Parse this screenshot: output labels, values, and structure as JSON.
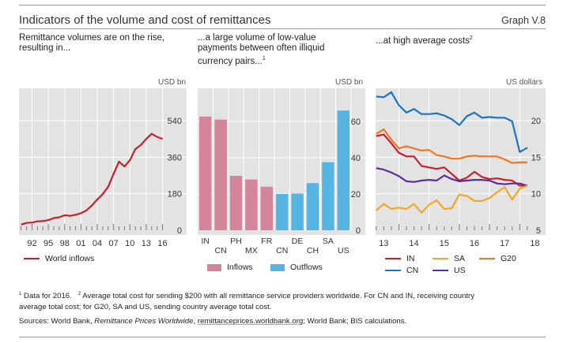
{
  "header": {
    "title": "Indicators of the volume and cost of remittances",
    "graph_number": "Graph V.8"
  },
  "panels": [
    {
      "subtitle_lines": [
        "Remittance volumes are on the rise,",
        "resulting in..."
      ],
      "footnote_mark": "",
      "unit": "USD bn"
    },
    {
      "subtitle_lines": [
        "...a large volume of low-value",
        "payments between often illiquid",
        "currency pairs..."
      ],
      "footnote_mark": "1",
      "unit": "USD bn"
    },
    {
      "subtitle_lines": [
        "...at high average costs"
      ],
      "footnote_mark": "2",
      "unit": "US dollars"
    }
  ],
  "chart_data": [
    {
      "type": "line",
      "title": "Remittance volumes are on the rise, resulting in...",
      "ylabel": "USD bn",
      "ylim": [
        0,
        600
      ],
      "yticks": [
        0,
        180,
        360,
        540
      ],
      "xtick_labels": [
        "92",
        "95",
        "98",
        "01",
        "04",
        "07",
        "10",
        "13",
        "16"
      ],
      "x": [
        1990,
        1991,
        1992,
        1993,
        1994,
        1995,
        1996,
        1997,
        1998,
        1999,
        2000,
        2001,
        2002,
        2003,
        2004,
        2005,
        2006,
        2007,
        2008,
        2009,
        2010,
        2011,
        2012,
        2013,
        2014,
        2015,
        2016
      ],
      "series": [
        {
          "name": "World inflows",
          "color": "#c8202f",
          "values": [
            28,
            36,
            38,
            44,
            45,
            50,
            60,
            64,
            74,
            71,
            76,
            84,
            98,
            122,
            152,
            178,
            215,
            278,
            338,
            314,
            345,
            400,
            420,
            450,
            475,
            460,
            450
          ]
        }
      ],
      "legend": [
        "World inflows"
      ],
      "grid": true
    },
    {
      "type": "bar",
      "title": "...a large volume of low-value payments between often illiquid currency pairs...",
      "ylabel": "USD bn",
      "ylim": [
        0,
        70
      ],
      "yticks": [
        0,
        20,
        40,
        60
      ],
      "categories": [
        "IN",
        "CN",
        "PH",
        "MX",
        "FR",
        "CN",
        "DE",
        "CH",
        "SA",
        "US"
      ],
      "series": [
        {
          "name": "Inflows",
          "color": "#d4849b",
          "values": [
            62.7,
            61.0,
            30.0,
            28.0,
            24.0,
            null,
            null,
            null,
            null,
            null
          ]
        },
        {
          "name": "Outflows",
          "color": "#56b4e3",
          "values": [
            null,
            null,
            null,
            null,
            null,
            20.0,
            20.2,
            26.0,
            37.5,
            66.0
          ]
        }
      ],
      "legend": [
        "Inflows",
        "Outflows"
      ],
      "grid": true
    },
    {
      "type": "line",
      "title": "...at high average costs",
      "ylabel": "US dollars",
      "ylim": [
        5,
        25
      ],
      "yticks": [
        5,
        10,
        15,
        20
      ],
      "xtick_labels": [
        "13",
        "14",
        "15",
        "16",
        "17",
        "18"
      ],
      "x": [
        2012.75,
        2013.0,
        2013.25,
        2013.5,
        2013.75,
        2014.0,
        2014.25,
        2014.5,
        2014.75,
        2015.0,
        2015.25,
        2015.5,
        2015.75,
        2016.0,
        2016.25,
        2016.5,
        2016.75,
        2017.0,
        2017.25,
        2017.5,
        2017.75
      ],
      "series": [
        {
          "name": "IN",
          "color": "#c8202f",
          "values": [
            17.9,
            18.1,
            16.9,
            15.6,
            15.1,
            15.1,
            13.8,
            13.6,
            13.4,
            13.6,
            12.7,
            11.8,
            12.2,
            13.0,
            12.3,
            12.0,
            12.1,
            11.9,
            11.8,
            11.1,
            11.1
          ]
        },
        {
          "name": "CN",
          "color": "#1a73c5",
          "values": [
            23.3,
            23.2,
            23.9,
            22.1,
            21.1,
            21.6,
            20.9,
            20.9,
            21.0,
            20.7,
            20.2,
            19.4,
            20.6,
            21.1,
            20.4,
            20.5,
            20.4,
            20.4,
            19.9,
            15.7,
            16.3
          ]
        },
        {
          "name": "US",
          "color": "#5c2d9c",
          "values": [
            13.5,
            13.3,
            12.9,
            12.4,
            11.7,
            11.6,
            11.8,
            11.9,
            11.8,
            12.5,
            12.0,
            11.7,
            11.8,
            11.9,
            11.9,
            11.8,
            11.4,
            11.3,
            11.4,
            11.4,
            11.1
          ]
        },
        {
          "name": "SA",
          "color": "#f5a623",
          "values": [
            7.7,
            8.6,
            7.9,
            8.1,
            7.9,
            8.6,
            7.4,
            8.5,
            9.1,
            7.9,
            8.0,
            9.9,
            9.7,
            9.0,
            9.0,
            9.4,
            10.2,
            10.9,
            9.2,
            10.7,
            11.1
          ]
        },
        {
          "name": "G20",
          "color": "#f47521",
          "values": [
            18.2,
            18.8,
            17.4,
            16.2,
            16.5,
            16.2,
            15.9,
            16.0,
            15.3,
            15.1,
            14.8,
            14.8,
            15.1,
            15.2,
            15.1,
            15.1,
            15.1,
            14.7,
            14.2,
            14.3,
            14.3
          ]
        }
      ],
      "legend": [
        "IN",
        "SA",
        "G20",
        "CN",
        "US"
      ],
      "grid": true
    }
  ],
  "footnotes": {
    "note1_mark": "1",
    "note1_text": " Data for 2016.",
    "note2_mark": "2",
    "note2_text": " Average total cost for sending $200 with all remittance service providers worldwide. For CN and IN, receiving country",
    "note2_text_line2": "average total cost; for G20, SA and US, sending country average total cost.",
    "sources_prefix": "Sources: World Bank, ",
    "sources_italic": "Remittance Prices Worldwide",
    "sources_sep": ", ",
    "sources_link": "remittanceprices.worldbank.org",
    "sources_suffix": "; World Bank; BIS calculations."
  }
}
